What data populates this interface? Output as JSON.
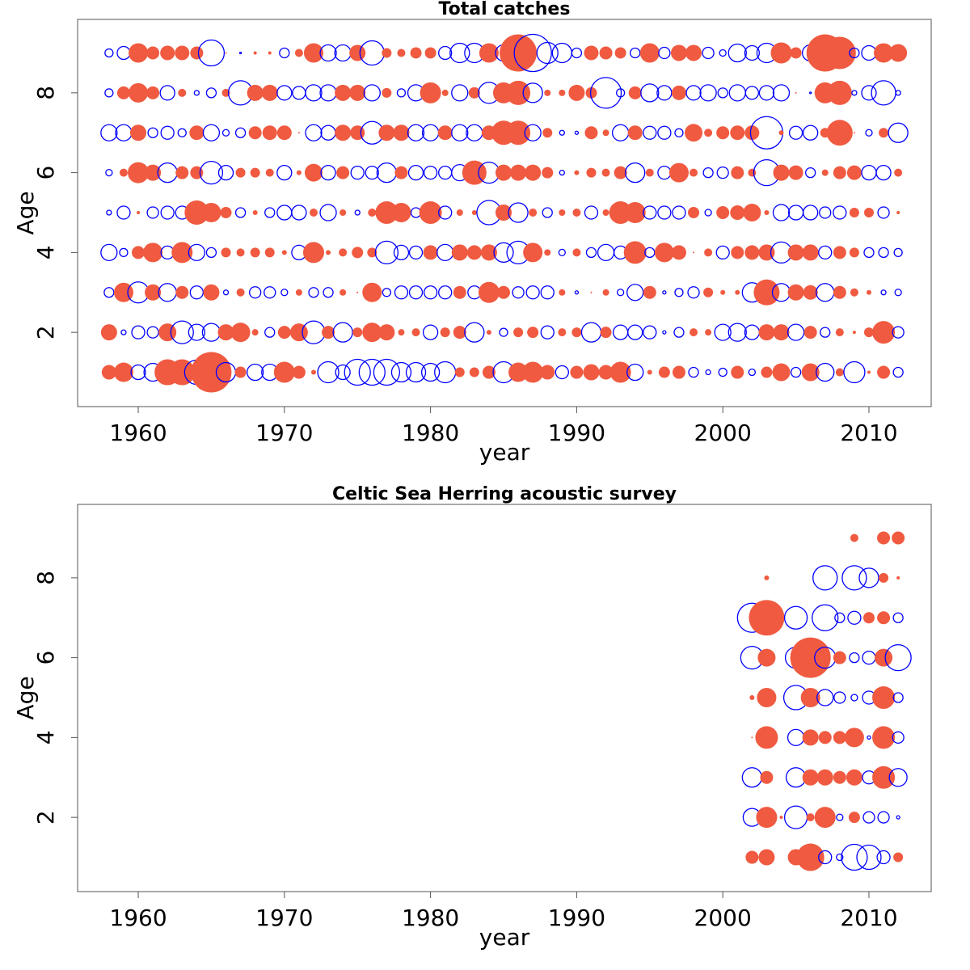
{
  "chart_data": [
    {
      "type": "bubble",
      "title": "Total catches",
      "xlabel": "year",
      "ylabel": "Age",
      "positive_color": "#f05a40",
      "negative_color": "#0000ff",
      "xlim": [
        1955.85,
        2014.26
      ],
      "ylim": [
        0.14,
        9.84
      ],
      "xticks": [
        1960,
        1970,
        1980,
        1990,
        2000,
        2010
      ],
      "yticks": [
        2,
        4,
        6,
        8
      ],
      "x": [
        1958,
        1959,
        1960,
        1961,
        1962,
        1963,
        1964,
        1965,
        1966,
        1967,
        1968,
        1969,
        1970,
        1971,
        1972,
        1973,
        1974,
        1975,
        1976,
        1977,
        1978,
        1979,
        1980,
        1981,
        1982,
        1983,
        1984,
        1985,
        1986,
        1987,
        1988,
        1989,
        1990,
        1991,
        1992,
        1993,
        1994,
        1995,
        1996,
        1997,
        1998,
        1999,
        2000,
        2001,
        2002,
        2003,
        2004,
        2005,
        2006,
        2007,
        2008,
        2009,
        2010,
        2011,
        2012
      ],
      "y": [
        1,
        2,
        3,
        4,
        5,
        6,
        7,
        8,
        9
      ],
      "values": [
        [
          0.9,
          1.2,
          -0.9,
          -1.1,
          1.6,
          1.6,
          -1.5,
          2.5,
          -1.2,
          0.7,
          -1.0,
          -1.0,
          1.3,
          0.8,
          0.3,
          -1.3,
          -0.9,
          -1.6,
          -1.6,
          -1.6,
          -1.2,
          -1.2,
          -1.1,
          -1.3,
          0.6,
          0.6,
          0.8,
          -1.3,
          1.2,
          1.3,
          0.9,
          -0.8,
          0.8,
          1.0,
          0.9,
          1.3,
          -1.0,
          0.3,
          0.7,
          0.8,
          -0.6,
          -0.3,
          -0.5,
          0.8,
          -0.4,
          0.7,
          1.1,
          -0.6,
          1.1,
          -1.1,
          0.5,
          -1.3,
          0.2,
          0.8,
          -0.6
        ],
        [
          1.0,
          -0.3,
          -0.8,
          -0.7,
          1.1,
          -1.4,
          -1.0,
          -1.1,
          1.0,
          1.2,
          0.4,
          -0.6,
          0.8,
          1.1,
          -1.4,
          0.8,
          -1.2,
          0.6,
          1.2,
          1.0,
          0.4,
          0.5,
          -0.9,
          0.6,
          0.8,
          -1.2,
          0.3,
          -0.5,
          0.6,
          0.7,
          -0.8,
          0.5,
          0.6,
          -1.2,
          0.7,
          -0.9,
          -0.9,
          -0.8,
          -0.2,
          -0.6,
          0.5,
          0.4,
          -1.0,
          -1.1,
          -0.9,
          1.0,
          1.0,
          -1.0,
          0.8,
          -0.6,
          0.5,
          0.2,
          0.6,
          1.4,
          -0.7
        ],
        [
          -0.6,
          1.2,
          -1.3,
          1.0,
          -1.1,
          0.8,
          -0.8,
          1.0,
          -0.3,
          0.5,
          -0.7,
          -0.7,
          -0.4,
          0.4,
          -0.6,
          -0.6,
          0.4,
          0.1,
          1.2,
          -0.5,
          -0.8,
          -0.8,
          -0.8,
          -0.8,
          0.8,
          -0.8,
          1.3,
          0.8,
          -0.7,
          -0.8,
          -0.8,
          0.4,
          -0.2,
          0.1,
          0.4,
          -0.4,
          -1.0,
          0.8,
          -0.2,
          -0.5,
          -0.7,
          0.6,
          0.3,
          0.3,
          -1.2,
          1.6,
          -1.1,
          1.0,
          0.9,
          -1.1,
          0.8,
          0.5,
          0.3,
          -0.3,
          -0.4
        ],
        [
          -1.0,
          -0.5,
          0.8,
          1.2,
          -0.8,
          1.3,
          -1.0,
          -0.6,
          0.6,
          0.5,
          0.6,
          0.6,
          0.3,
          -0.9,
          1.3,
          0.3,
          0.5,
          0.7,
          0.6,
          -1.4,
          -0.9,
          -0.8,
          0.9,
          -1.0,
          1.0,
          0.9,
          1.0,
          -1.2,
          -1.4,
          1.2,
          0.4,
          -0.4,
          0.5,
          -0.6,
          -1.0,
          -0.8,
          1.4,
          -0.6,
          1.2,
          0.9,
          0.1,
          0.5,
          -0.8,
          0.8,
          0.9,
          1.0,
          -1.3,
          1.0,
          1.0,
          -0.8,
          0.8,
          0.6,
          -0.6,
          -0.6,
          -0.5
        ],
        [
          -0.3,
          -0.8,
          0.2,
          -0.7,
          -0.8,
          -0.8,
          1.5,
          1.2,
          0.7,
          -0.6,
          0.3,
          -0.6,
          -0.9,
          -0.9,
          0.5,
          -1.0,
          0.4,
          -0.3,
          0.5,
          1.4,
          1.2,
          -0.6,
          1.4,
          -0.8,
          0.4,
          0.3,
          -1.5,
          1.0,
          -1.2,
          0.5,
          -0.6,
          0.4,
          0.5,
          -0.8,
          0.4,
          1.4,
          1.3,
          -0.8,
          -0.8,
          -0.8,
          0.7,
          -0.4,
          0.8,
          0.9,
          1.1,
          0.3,
          -1.0,
          -0.9,
          -0.9,
          -0.7,
          -0.8,
          0.6,
          0.6,
          -0.7,
          0.2
        ],
        [
          -0.4,
          0.5,
          1.3,
          1.0,
          -1.2,
          0.8,
          0.8,
          -1.4,
          -0.9,
          0.6,
          0.6,
          0.5,
          -0.9,
          0.3,
          1.1,
          -0.9,
          0.8,
          -0.8,
          -0.8,
          -1.2,
          0.8,
          -0.9,
          -0.8,
          -0.8,
          -1.0,
          1.5,
          -1.3,
          1.0,
          1.0,
          1.0,
          0.7,
          -0.3,
          0.3,
          0.6,
          0.5,
          0.8,
          -1.2,
          0.5,
          -0.8,
          1.2,
          0.5,
          -0.6,
          -0.7,
          0.8,
          0.5,
          -1.6,
          1.0,
          0.9,
          -0.6,
          0.4,
          0.8,
          0.9,
          -0.9,
          -0.9,
          0.5
        ],
        [
          -1.0,
          -1.0,
          1.0,
          -0.6,
          -0.8,
          -0.5,
          0.9,
          -1.0,
          -0.4,
          -0.6,
          0.8,
          0.9,
          0.9,
          0.1,
          -1.0,
          -0.9,
          1.0,
          0.9,
          -1.4,
          1.0,
          1.0,
          -1.0,
          -1.0,
          0.9,
          -1.0,
          -1.0,
          0.9,
          1.5,
          1.5,
          -1.0,
          0.6,
          -0.3,
          -0.2,
          0.8,
          0.4,
          -1.0,
          0.9,
          -0.8,
          -0.8,
          -0.5,
          1.1,
          0.5,
          0.8,
          0.9,
          0.9,
          -2.0,
          0.3,
          -0.8,
          -0.9,
          0.6,
          1.6,
          0.1,
          -0.4,
          0.6,
          -1.2
        ],
        [
          -0.5,
          0.8,
          1.2,
          0.8,
          -0.9,
          0.5,
          -0.3,
          -0.6,
          0.5,
          -1.5,
          1.0,
          1.0,
          -0.9,
          -0.8,
          -1.0,
          -1.0,
          1.0,
          1.0,
          -1.0,
          0.6,
          -0.5,
          -1.0,
          1.3,
          0.4,
          -1.0,
          0.7,
          -1.3,
          1.3,
          1.5,
          -1.2,
          0.4,
          0.4,
          1.0,
          0.7,
          -1.9,
          -0.5,
          0.8,
          -1.1,
          -0.9,
          0.9,
          -0.9,
          -1.0,
          -0.6,
          -1.0,
          -0.8,
          -0.9,
          -1.0,
          0.1,
          -0.1,
          1.3,
          1.5,
          -0.3,
          -0.9,
          -1.5,
          -0.3
        ],
        [
          -0.5,
          -0.8,
          1.2,
          0.8,
          0.9,
          0.9,
          0.8,
          -1.6,
          0.1,
          -0.1,
          0.2,
          0.2,
          -0.6,
          0.5,
          1.2,
          -1.0,
          -1.0,
          1.0,
          -1.5,
          0.6,
          0.5,
          0.7,
          0.7,
          -0.8,
          -1.2,
          -1.2,
          1.2,
          -1.0,
          2.3,
          -2.3,
          -1.3,
          -1.2,
          -0.6,
          0.9,
          0.8,
          0.7,
          -0.6,
          1.2,
          -0.7,
          1.0,
          1.0,
          -0.7,
          -0.4,
          -1.1,
          -0.9,
          -1.2,
          1.3,
          0.7,
          -1.0,
          2.3,
          2.0,
          -0.6,
          -0.9,
          1.2,
          1.1
        ]
      ]
    },
    {
      "type": "bubble",
      "title": "Celtic Sea Herring acoustic survey",
      "xlabel": "year",
      "ylabel": "Age",
      "positive_color": "#f05a40",
      "negative_color": "#0000ff",
      "xlim": [
        1955.85,
        2014.26
      ],
      "ylim": [
        0.14,
        9.84
      ],
      "xticks": [
        1960,
        1970,
        1980,
        1990,
        2000,
        2010
      ],
      "yticks": [
        2,
        4,
        6,
        8
      ],
      "x": [
        2002,
        2003,
        2004,
        2005,
        2006,
        2007,
        2008,
        2009,
        2010,
        2011,
        2012
      ],
      "y": [
        1,
        2,
        3,
        4,
        5,
        6,
        7,
        8,
        9
      ],
      "values": [
        [
          0.8,
          1.0,
          null,
          1.0,
          1.7,
          -0.8,
          -0.4,
          -1.6,
          -1.5,
          -0.8,
          0.6
        ],
        [
          -1.1,
          1.3,
          0.2,
          -1.4,
          0.5,
          1.3,
          -0.4,
          0.7,
          -0.7,
          -0.7,
          -0.2
        ],
        [
          -1.2,
          0.8,
          null,
          -1.2,
          1.0,
          1.0,
          0.8,
          1.0,
          -0.8,
          1.4,
          -1.1
        ],
        [
          0.1,
          1.4,
          null,
          -1.0,
          1.0,
          0.8,
          0.8,
          1.2,
          -0.2,
          1.4,
          -0.7
        ],
        [
          0.3,
          1.2,
          null,
          -1.5,
          1.2,
          -1.0,
          -0.7,
          -0.4,
          -0.8,
          1.4,
          -0.6
        ],
        [
          -1.4,
          1.1,
          null,
          -1.3,
          2.5,
          -1.3,
          0.8,
          -0.6,
          -0.8,
          1.1,
          -1.6
        ],
        [
          -1.8,
          2.2,
          null,
          -1.4,
          null,
          -1.6,
          -0.6,
          -0.8,
          0.7,
          0.8,
          -0.6
        ],
        [
          null,
          0.3,
          null,
          null,
          null,
          -1.5,
          null,
          -1.5,
          -1.2,
          0.6,
          0.2
        ],
        [
          null,
          null,
          null,
          null,
          null,
          null,
          null,
          0.5,
          null,
          0.8,
          0.8
        ]
      ]
    }
  ]
}
